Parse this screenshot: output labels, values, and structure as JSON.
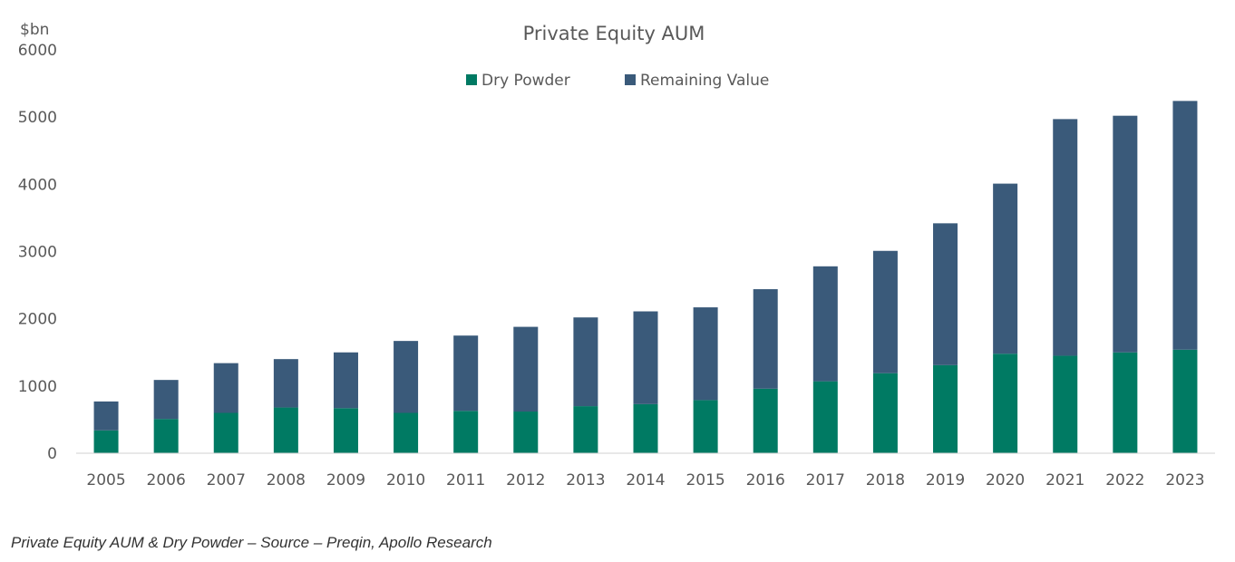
{
  "colors": {
    "dry_powder": "#007A63",
    "remaining_value": "#3A5A7A",
    "axis_line": "#D0D0D0",
    "text": "#595959"
  },
  "caption": "Private Equity AUM & Dry Powder – Source – Preqin, Apollo Research",
  "chart_data": {
    "type": "bar",
    "stacked": true,
    "title": "Private Equity AUM",
    "y_unit_label": "$bn",
    "ylim": [
      0,
      6000
    ],
    "yticks": [
      "0",
      "1000",
      "2000",
      "3000",
      "4000",
      "5000",
      "6000"
    ],
    "grid": false,
    "legend_position": "top-center",
    "categories": [
      "2005",
      "2006",
      "2007",
      "2008",
      "2009",
      "2010",
      "2011",
      "2012",
      "2013",
      "2014",
      "2015",
      "2016",
      "2017",
      "2018",
      "2019",
      "2020",
      "2021",
      "2022",
      "2023"
    ],
    "series": [
      {
        "name": "Dry Powder",
        "color": "#007A63",
        "values": [
          340,
          510,
          600,
          680,
          670,
          600,
          630,
          620,
          700,
          730,
          790,
          960,
          1070,
          1190,
          1310,
          1480,
          1450,
          1500,
          1540
        ]
      },
      {
        "name": "Remaining Value",
        "color": "#3A5A7A",
        "values": [
          430,
          580,
          740,
          720,
          830,
          1070,
          1120,
          1260,
          1320,
          1380,
          1380,
          1480,
          1710,
          1820,
          2110,
          2530,
          3520,
          3520,
          3700
        ]
      }
    ]
  }
}
